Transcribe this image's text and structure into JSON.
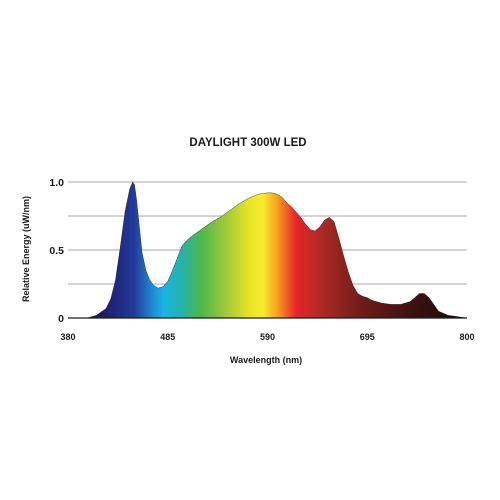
{
  "chart_data": {
    "type": "area",
    "title": "DAYLIGHT 300W LED",
    "xlabel": "Wavelength (nm)",
    "ylabel": "Relative Energy (uW/nm)",
    "xlim": [
      380,
      800
    ],
    "ylim": [
      0,
      1.0
    ],
    "x_ticks": [
      "380",
      "485",
      "590",
      "695",
      "800"
    ],
    "y_ticks": [
      "0",
      "0.5",
      "1.0"
    ],
    "grid": true,
    "gradient_colors": [
      {
        "nm": 380,
        "color": "#1a1040"
      },
      {
        "nm": 420,
        "color": "#1f1d6e"
      },
      {
        "nm": 450,
        "color": "#233a9c"
      },
      {
        "nm": 470,
        "color": "#1f8fd6"
      },
      {
        "nm": 480,
        "color": "#19b4e6"
      },
      {
        "nm": 500,
        "color": "#26b3a8"
      },
      {
        "nm": 520,
        "color": "#4cb848"
      },
      {
        "nm": 545,
        "color": "#9dc83a"
      },
      {
        "nm": 570,
        "color": "#e6e324"
      },
      {
        "nm": 585,
        "color": "#f7ec2c"
      },
      {
        "nm": 600,
        "color": "#f6a21e"
      },
      {
        "nm": 620,
        "color": "#e5262a"
      },
      {
        "nm": 650,
        "color": "#a82a24"
      },
      {
        "nm": 690,
        "color": "#6e1c18"
      },
      {
        "nm": 740,
        "color": "#3e1210"
      },
      {
        "nm": 800,
        "color": "#1a0808"
      }
    ],
    "series": [
      {
        "x": [
          380,
          400,
          410,
          420,
          425,
          430,
          435,
          440,
          445,
          448,
          450,
          452,
          455,
          458,
          462,
          466,
          470,
          475,
          480,
          485,
          490,
          495,
          500,
          505,
          510,
          520,
          530,
          540,
          550,
          560,
          570,
          580,
          590,
          595,
          600,
          605,
          610,
          615,
          620,
          625,
          630,
          635,
          640,
          645,
          650,
          655,
          660,
          665,
          670,
          675,
          680,
          685,
          690,
          695,
          700,
          710,
          720,
          730,
          740,
          745,
          750,
          755,
          760,
          765,
          770,
          780,
          790,
          800
        ],
        "values": [
          0,
          0,
          0.02,
          0.07,
          0.14,
          0.28,
          0.52,
          0.78,
          0.95,
          1.0,
          0.98,
          0.88,
          0.68,
          0.48,
          0.35,
          0.28,
          0.24,
          0.22,
          0.23,
          0.27,
          0.35,
          0.44,
          0.53,
          0.57,
          0.6,
          0.65,
          0.7,
          0.74,
          0.79,
          0.84,
          0.88,
          0.91,
          0.92,
          0.92,
          0.91,
          0.89,
          0.85,
          0.82,
          0.78,
          0.74,
          0.69,
          0.65,
          0.64,
          0.67,
          0.72,
          0.74,
          0.71,
          0.59,
          0.46,
          0.34,
          0.24,
          0.18,
          0.16,
          0.15,
          0.13,
          0.11,
          0.1,
          0.1,
          0.12,
          0.15,
          0.18,
          0.18,
          0.15,
          0.1,
          0.05,
          0.02,
          0.01,
          0
        ]
      }
    ]
  }
}
